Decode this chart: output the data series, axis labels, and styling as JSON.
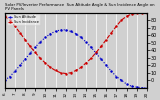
{
  "title": "Solar PV/Inverter Performance  Sun Altitude Angle & Sun Incidence Angle on PV Panels",
  "legend1": "Sun Altitude",
  "legend2": "Sun Incidence",
  "background_color": "#d0d0d0",
  "plot_bg": "#d0d0d0",
  "grid_color": "#ffffff",
  "line1_color": "#0000cc",
  "line2_color": "#cc0000",
  "x_start": 6,
  "x_end": 20,
  "x_ticks": [
    6,
    7,
    8,
    9,
    10,
    11,
    12,
    13,
    14,
    15,
    16,
    17,
    18,
    19,
    20
  ],
  "y_left_min": -10,
  "y_left_max": 90,
  "y_right_min": -10,
  "y_right_max": 90,
  "y_right_ticks": [
    80,
    70,
    60,
    50,
    40,
    30,
    20,
    10,
    0
  ],
  "altitude_x": [
    6,
    6.5,
    7,
    7.5,
    8,
    8.5,
    9,
    9.5,
    10,
    10.5,
    11,
    11.5,
    12,
    12.5,
    13,
    13.5,
    14,
    14.5,
    15,
    15.5,
    16,
    16.5,
    17,
    17.5,
    18,
    18.5,
    19,
    19.5,
    20
  ],
  "altitude_y": [
    0,
    5,
    12,
    20,
    28,
    36,
    44,
    51,
    57,
    62,
    65,
    67,
    67,
    65,
    62,
    57,
    51,
    44,
    36,
    28,
    20,
    12,
    5,
    0,
    -5,
    -8,
    -9,
    -10,
    -10
  ],
  "incidence_x": [
    6,
    6.5,
    7,
    7.5,
    8,
    8.5,
    9,
    9.5,
    10,
    10.5,
    11,
    11.5,
    12,
    12.5,
    13,
    13.5,
    14,
    14.5,
    15,
    15.5,
    16,
    16.5,
    17,
    17.5,
    18,
    18.5,
    19,
    19.5,
    20
  ],
  "incidence_y": [
    85,
    80,
    72,
    63,
    54,
    45,
    37,
    29,
    23,
    17,
    13,
    10,
    9,
    10,
    13,
    17,
    23,
    29,
    37,
    45,
    54,
    63,
    72,
    80,
    85,
    88,
    89,
    90,
    90
  ]
}
